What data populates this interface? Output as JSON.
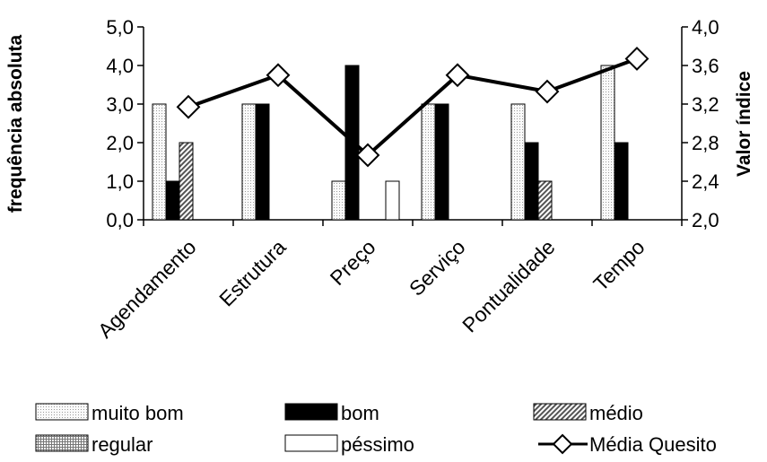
{
  "chart_data": {
    "type": "bar",
    "title": "",
    "xlabel": "",
    "ylabel": "frequência absoluta",
    "y2label": "Valor índice",
    "ylim": [
      0,
      5
    ],
    "y2lim": [
      2.0,
      4.0
    ],
    "yticks": [
      "0,0",
      "1,0",
      "2,0",
      "3,0",
      "4,0",
      "5,0"
    ],
    "y2ticks": [
      "2,0",
      "2,4",
      "2,8",
      "3,2",
      "3,6",
      "4,0"
    ],
    "categories": [
      "Agendamento",
      "Estrutura",
      "Preço",
      "Serviço",
      "Pontualidade",
      "Tempo"
    ],
    "series": [
      {
        "name": "muito bom",
        "values": [
          3,
          3,
          1,
          3,
          3,
          4
        ]
      },
      {
        "name": "bom",
        "values": [
          1,
          3,
          4,
          3,
          2,
          2
        ]
      },
      {
        "name": "médio",
        "values": [
          2,
          0,
          0,
          0,
          1,
          0
        ]
      },
      {
        "name": "regular",
        "values": [
          0,
          0,
          0,
          0,
          0,
          0
        ]
      },
      {
        "name": "péssimo",
        "values": [
          0,
          0,
          1,
          0,
          0,
          0
        ]
      }
    ],
    "line_series": {
      "name": "Média Quesito",
      "axis": "right",
      "values": [
        3.17,
        3.5,
        2.67,
        3.5,
        3.33,
        3.67
      ]
    },
    "colors": {
      "muito bom": "#f0f0f0",
      "bom": "#000000",
      "médio": "#9a9a9a",
      "regular": "#d4d4d4",
      "péssimo": "#ffffff",
      "Média Quesito": "#000000"
    },
    "grid": false,
    "legend_position": "bottom"
  }
}
